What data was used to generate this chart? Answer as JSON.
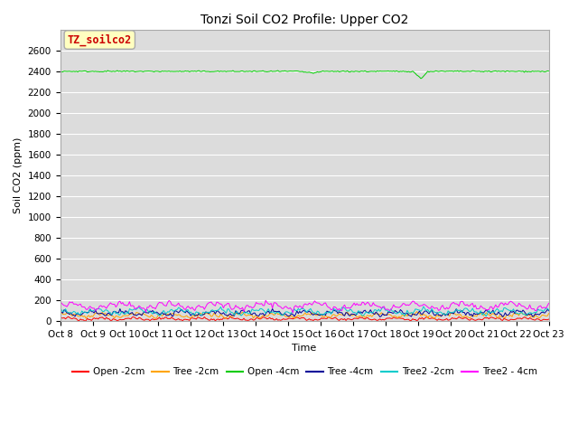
{
  "title": "Tonzi Soil CO2 Profile: Upper CO2",
  "xlabel": "Time",
  "ylabel": "Soil CO2 (ppm)",
  "ylim": [
    0,
    2800
  ],
  "yticks": [
    0,
    200,
    400,
    600,
    800,
    1000,
    1200,
    1400,
    1600,
    1800,
    2000,
    2200,
    2400,
    2600
  ],
  "n_points": 360,
  "background_color": "#dcdcdc",
  "legend_label": "TZ_soilco2",
  "legend_box_facecolor": "#ffffc0",
  "legend_box_edgecolor": "#aaaaaa",
  "legend_text_color": "#cc0000",
  "series": [
    {
      "label": "Open -2cm",
      "color": "#ff0000",
      "base": 20,
      "amp": 10,
      "freq": 1.5,
      "phase": 0.0
    },
    {
      "label": "Tree -2cm",
      "color": "#ffa500",
      "base": 55,
      "amp": 15,
      "freq": 1.4,
      "phase": 0.5
    },
    {
      "label": "Open -4cm",
      "color": "#00cc00",
      "base": 2400,
      "amp": 5,
      "freq": 0.3,
      "phase": 1.0
    },
    {
      "label": "Tree -4cm",
      "color": "#000099",
      "base": 75,
      "amp": 18,
      "freq": 1.6,
      "phase": 1.5
    },
    {
      "label": "Tree2 -2cm",
      "color": "#00cccc",
      "base": 90,
      "amp": 20,
      "freq": 1.2,
      "phase": 2.0
    },
    {
      "label": "Tree2 - 4cm",
      "color": "#ff00ff",
      "base": 145,
      "amp": 25,
      "freq": 1.0,
      "phase": 0.3
    }
  ],
  "xtick_labels": [
    "Oct 8",
    "Oct 9",
    "Oct 10",
    "Oct 11",
    "Oct 12",
    "Oct 13",
    "Oct 14",
    "Oct 15",
    "Oct 16",
    "Oct 17",
    "Oct 18",
    "Oct 19",
    "Oct 20",
    "Oct 21",
    "Oct 22",
    "Oct 23"
  ],
  "title_fontsize": 10,
  "axis_fontsize": 8,
  "tick_fontsize": 7.5,
  "legend_fontsize": 7.5
}
